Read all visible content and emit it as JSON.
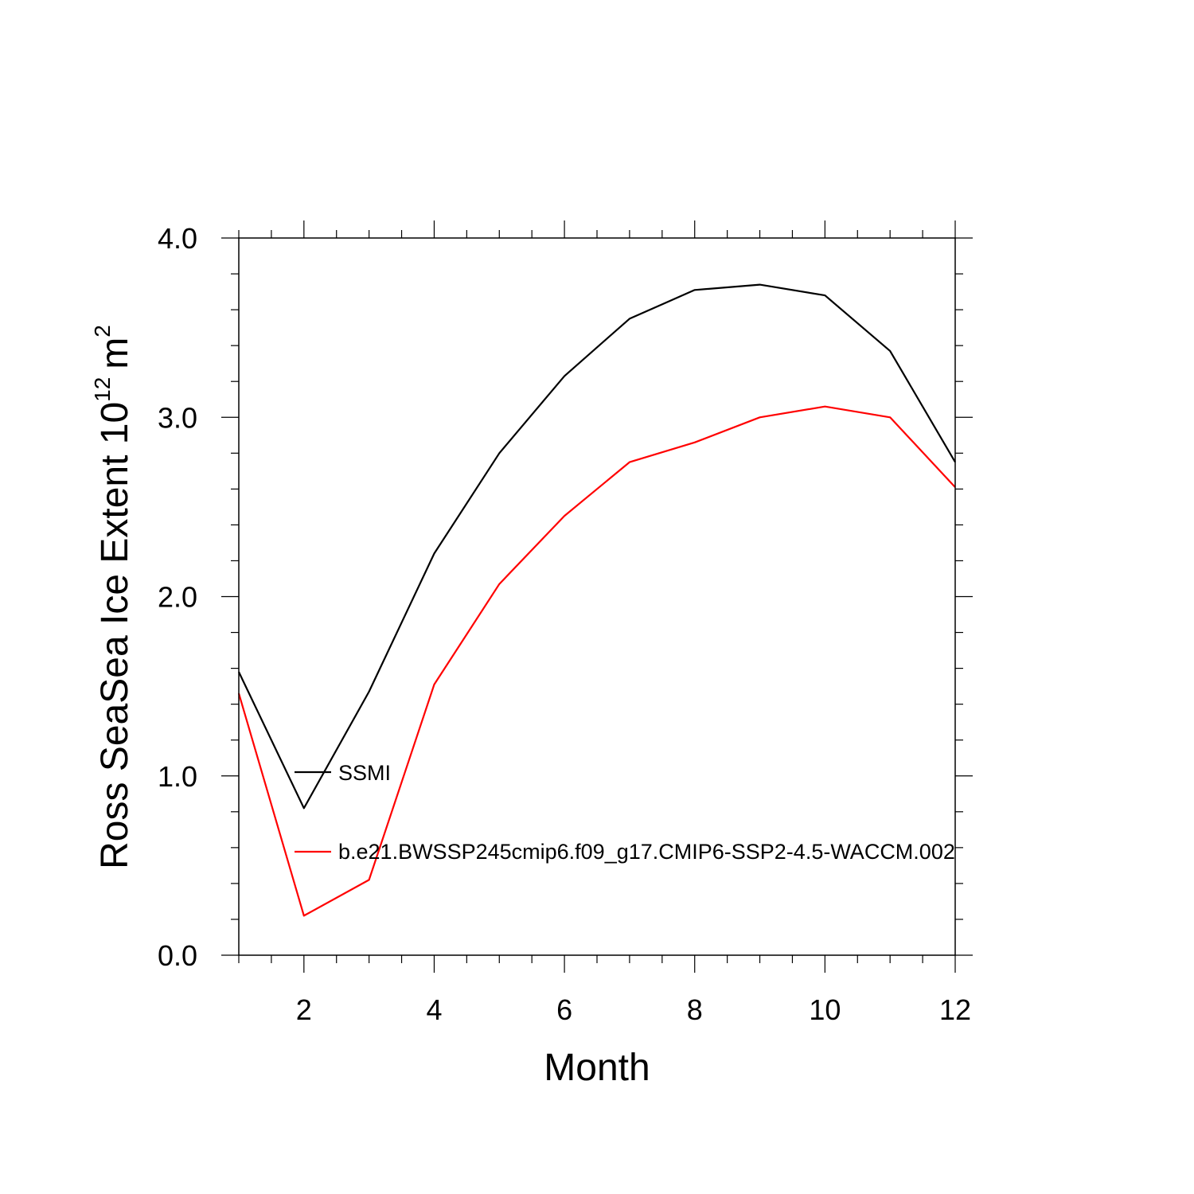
{
  "chart_data": {
    "type": "line",
    "xlabel": "Month",
    "ylabel": {
      "main": "Ross SeaSea Ice Extent 10",
      "exponent": "12",
      "unit": "m",
      "unit_exponent": "2"
    },
    "xlim": [
      1,
      12
    ],
    "ylim": [
      0,
      4
    ],
    "x_ticks": [
      2,
      4,
      6,
      8,
      10,
      12
    ],
    "x_tick_labels": [
      "2",
      "4",
      "6",
      "8",
      "10",
      "12"
    ],
    "y_ticks": [
      0,
      1,
      2,
      3,
      4
    ],
    "y_tick_labels": [
      "0.0",
      "1.0",
      "2.0",
      "3.0",
      "4.0"
    ],
    "grid": false,
    "legend_position": "inside-lower-left",
    "x": [
      1,
      2,
      3,
      4,
      5,
      6,
      7,
      8,
      9,
      10,
      11,
      12
    ],
    "series": [
      {
        "name": "SSMI",
        "color": "#000000",
        "values": [
          1.58,
          0.82,
          1.47,
          2.24,
          2.8,
          3.23,
          3.55,
          3.71,
          3.74,
          3.68,
          3.37,
          2.75
        ]
      },
      {
        "name": "b.e21.BWSSP245cmip6.f09_g17.CMIP6-SSP2-4.5-WACCM.002",
        "color": "#ff0000",
        "values": [
          1.46,
          0.22,
          0.42,
          1.51,
          2.07,
          2.45,
          2.75,
          2.86,
          3.0,
          3.06,
          3.0,
          2.61
        ]
      }
    ]
  }
}
